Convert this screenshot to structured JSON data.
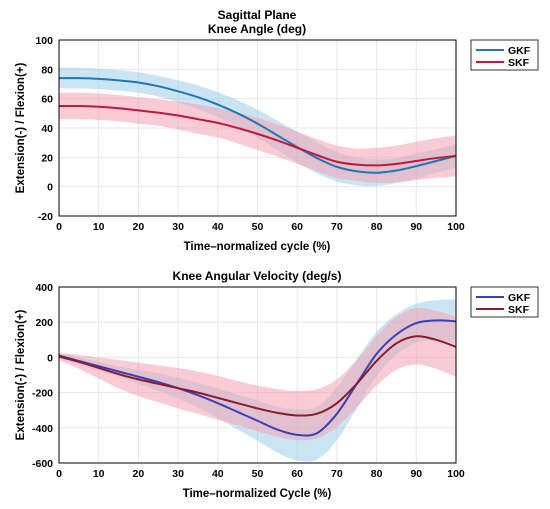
{
  "colors": {
    "gkf_line": "#1f77b4",
    "gkf_band": "#9ecde9",
    "skf_line": "#c0183a",
    "skf_band": "#f4a3b3",
    "gkf2_line": "#3a3fb5",
    "skf2_line": "#8b1a2b",
    "grid": "#e6e6e6"
  },
  "chart_data": [
    {
      "type": "line",
      "title": "Sagittal Plane",
      "subtitle": "Knee Angle (deg)",
      "xlabel": "Time–normalized cycle (%)",
      "ylabel": "Extension(-) / Flexion(+)",
      "xlim": [
        0,
        100
      ],
      "ylim": [
        -20,
        100
      ],
      "xticks": [
        "0",
        "10",
        "20",
        "30",
        "40",
        "50",
        "60",
        "70",
        "80",
        "90",
        "100"
      ],
      "yticks": [
        "-20",
        "0",
        "20",
        "40",
        "60",
        "80",
        "100"
      ],
      "grid": true,
      "legend_position": "right",
      "x": [
        0,
        5,
        10,
        15,
        20,
        25,
        30,
        35,
        40,
        45,
        50,
        55,
        60,
        65,
        70,
        75,
        80,
        85,
        90,
        95,
        100
      ],
      "series": [
        {
          "name": "GKF",
          "mean": [
            74,
            74,
            73.5,
            72.5,
            71,
            68.5,
            65,
            61,
            56,
            50,
            43,
            35,
            27,
            19.5,
            13.5,
            10.5,
            9.5,
            11,
            14,
            17.5,
            21
          ],
          "band_half_width": [
            7,
            7,
            7,
            7,
            7,
            7,
            7.5,
            8,
            8.5,
            9,
            9.5,
            10,
            10.5,
            10.5,
            10,
            9.5,
            9,
            8.5,
            8.5,
            8,
            8
          ]
        },
        {
          "name": "SKF",
          "mean": [
            55,
            55,
            54.5,
            53.5,
            52,
            50.5,
            48.5,
            46,
            43.5,
            40,
            36,
            31.5,
            26.5,
            21.5,
            17,
            15,
            14.5,
            15.5,
            17.5,
            19.5,
            21
          ],
          "band_half_width": [
            9,
            9,
            9,
            9,
            9,
            9,
            9.5,
            10,
            10,
            10.5,
            11,
            11,
            11,
            11,
            11,
            11,
            12,
            12.5,
            13,
            13.5,
            14
          ]
        }
      ]
    },
    {
      "type": "line",
      "title": "Knee Angular Velocity (deg/s)",
      "xlabel": "Time–normalized Cycle (%)",
      "ylabel": "Extension(-) / Flexion(+)",
      "xlim": [
        0,
        100
      ],
      "ylim": [
        -600,
        400
      ],
      "xticks": [
        "0",
        "10",
        "20",
        "30",
        "40",
        "50",
        "60",
        "70",
        "80",
        "90",
        "100"
      ],
      "yticks": [
        "-600",
        "-400",
        "-200",
        "0",
        "200",
        "400"
      ],
      "grid": true,
      "legend_position": "right",
      "x": [
        0,
        5,
        10,
        15,
        20,
        25,
        30,
        35,
        40,
        45,
        50,
        55,
        60,
        65,
        70,
        75,
        80,
        85,
        90,
        95,
        100
      ],
      "series": [
        {
          "name": "GKF",
          "mean": [
            10,
            -20,
            -50,
            -80,
            -110,
            -140,
            -175,
            -215,
            -260,
            -310,
            -360,
            -410,
            -440,
            -430,
            -320,
            -150,
            20,
            130,
            195,
            210,
            205
          ],
          "band_half_width": [
            15,
            20,
            25,
            30,
            40,
            50,
            60,
            70,
            85,
            100,
            115,
            130,
            145,
            150,
            150,
            140,
            125,
            115,
            110,
            115,
            125
          ]
        },
        {
          "name": "SKF",
          "mean": [
            5,
            -25,
            -60,
            -95,
            -125,
            -150,
            -175,
            -200,
            -230,
            -260,
            -290,
            -315,
            -330,
            -320,
            -260,
            -150,
            -20,
            80,
            120,
            100,
            60
          ],
          "band_half_width": [
            20,
            40,
            60,
            80,
            95,
            105,
            115,
            120,
            125,
            125,
            130,
            135,
            140,
            140,
            135,
            135,
            140,
            150,
            160,
            165,
            170
          ]
        }
      ]
    }
  ]
}
